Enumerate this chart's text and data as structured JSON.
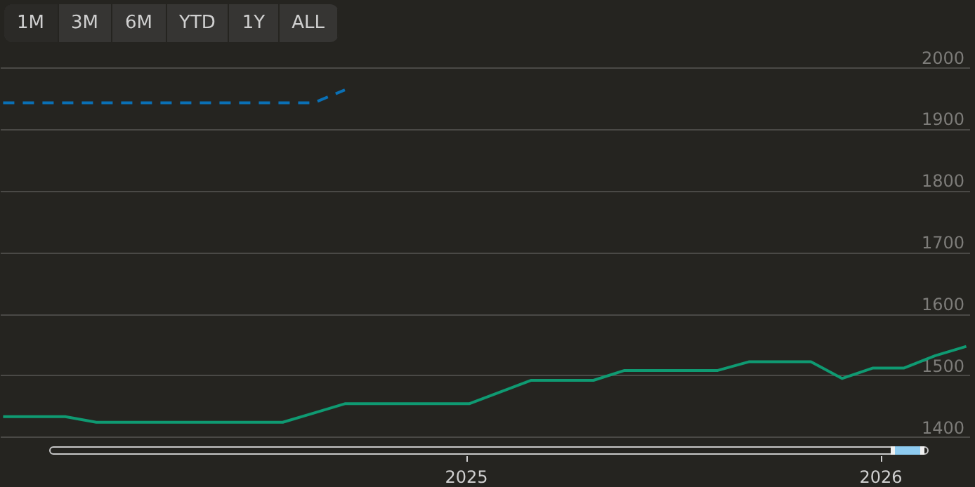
{
  "chart_data": [
    {
      "type": "line",
      "annotations": [
        "1M",
        "3M",
        "6M",
        "YTD",
        "1Y",
        "ALL"
      ],
      "categories": [
        null,
        null,
        null,
        null,
        null,
        null,
        null,
        null,
        null,
        null,
        null,
        null,
        null,
        null,
        null,
        null,
        null,
        null,
        null,
        null,
        null,
        null,
        null,
        null,
        null,
        null,
        null,
        null,
        null,
        null,
        null,
        null
      ],
      "series": [
        {
          "color": "#0f9a72",
          "values": [
            1433,
            1433,
            1433,
            1424,
            1424,
            1424,
            1424,
            1424,
            1424,
            1424,
            1439,
            1454,
            1454,
            1454,
            1454,
            1454,
            1473,
            1492,
            1492,
            1492,
            1508,
            1508,
            1508,
            1508,
            1522,
            1522,
            1522,
            1495,
            1512,
            1512,
            1532,
            1547
          ]
        },
        {
          "color": "#0a70b5",
          "line_style": "dashed",
          "values": [
            1942,
            1942,
            1942,
            1942,
            1942,
            1942,
            1942,
            1942,
            1942,
            1942,
            1942,
            1963,
            null,
            null,
            null,
            null,
            null,
            null,
            null,
            null,
            null,
            null,
            null,
            null,
            null,
            null,
            null,
            null,
            null,
            null,
            null,
            null
          ]
        }
      ],
      "ylim": [
        1385,
        2045
      ],
      "yticks": [
        1400,
        1500,
        1600,
        1700,
        1800,
        1900,
        2000
      ],
      "grid": "y",
      "tick_labels": "y",
      "marker": "none"
    },
    {
      "type": "other",
      "annotations": [
        "2025",
        "2026"
      ]
    }
  ]
}
